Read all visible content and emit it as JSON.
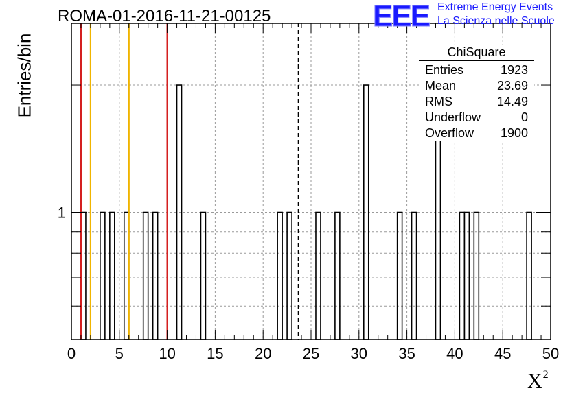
{
  "title": "ROMA-01-2016-11-21-00125",
  "logo": {
    "text": "EEE",
    "line1": "Extreme Energy Events",
    "line2": "La Scienza nelle Scuole",
    "color": "#1a1aff"
  },
  "stats": {
    "title": "ChiSquare",
    "rows": [
      {
        "label": "Entries",
        "value": "1923"
      },
      {
        "label": "Mean",
        "value": "23.69"
      },
      {
        "label": "RMS",
        "value": "14.49"
      },
      {
        "label": "Underflow",
        "value": "0"
      },
      {
        "label": "Overflow",
        "value": "1900"
      }
    ]
  },
  "chart_data": {
    "type": "histogram",
    "xlabel": "X",
    "xlabel_superscript": "2",
    "ylabel": "Entries/bin",
    "xlim": [
      0,
      50
    ],
    "ylim": [
      0.5,
      2.8
    ],
    "log_y": true,
    "grid": true,
    "bin_width": 0.5,
    "x_ticks": [
      "0",
      "5",
      "10",
      "15",
      "20",
      "25",
      "30",
      "35",
      "40",
      "45",
      "50"
    ],
    "y_tick_labels": [
      {
        "value": 1,
        "label": "1"
      }
    ],
    "bins": [
      {
        "x": 1.0,
        "count": 1
      },
      {
        "x": 3.0,
        "count": 1
      },
      {
        "x": 4.0,
        "count": 1
      },
      {
        "x": 5.5,
        "count": 1
      },
      {
        "x": 7.5,
        "count": 1
      },
      {
        "x": 8.5,
        "count": 1
      },
      {
        "x": 11.0,
        "count": 2
      },
      {
        "x": 13.5,
        "count": 1
      },
      {
        "x": 21.5,
        "count": 1
      },
      {
        "x": 22.5,
        "count": 1
      },
      {
        "x": 25.5,
        "count": 1
      },
      {
        "x": 27.5,
        "count": 1
      },
      {
        "x": 30.5,
        "count": 2
      },
      {
        "x": 34.0,
        "count": 1
      },
      {
        "x": 35.5,
        "count": 1
      },
      {
        "x": 38.0,
        "count": 2
      },
      {
        "x": 40.5,
        "count": 1
      },
      {
        "x": 41.0,
        "count": 1
      },
      {
        "x": 42.0,
        "count": 1
      },
      {
        "x": 47.5,
        "count": 1
      }
    ],
    "reference_lines": [
      {
        "x": 1,
        "color": "#d42020",
        "style": "solid"
      },
      {
        "x": 2,
        "color": "#f0b400",
        "style": "solid"
      },
      {
        "x": 6,
        "color": "#f0b400",
        "style": "solid"
      },
      {
        "x": 10,
        "color": "#d42020",
        "style": "solid"
      },
      {
        "x": 23.69,
        "color": "#000000",
        "style": "dashed"
      }
    ]
  }
}
